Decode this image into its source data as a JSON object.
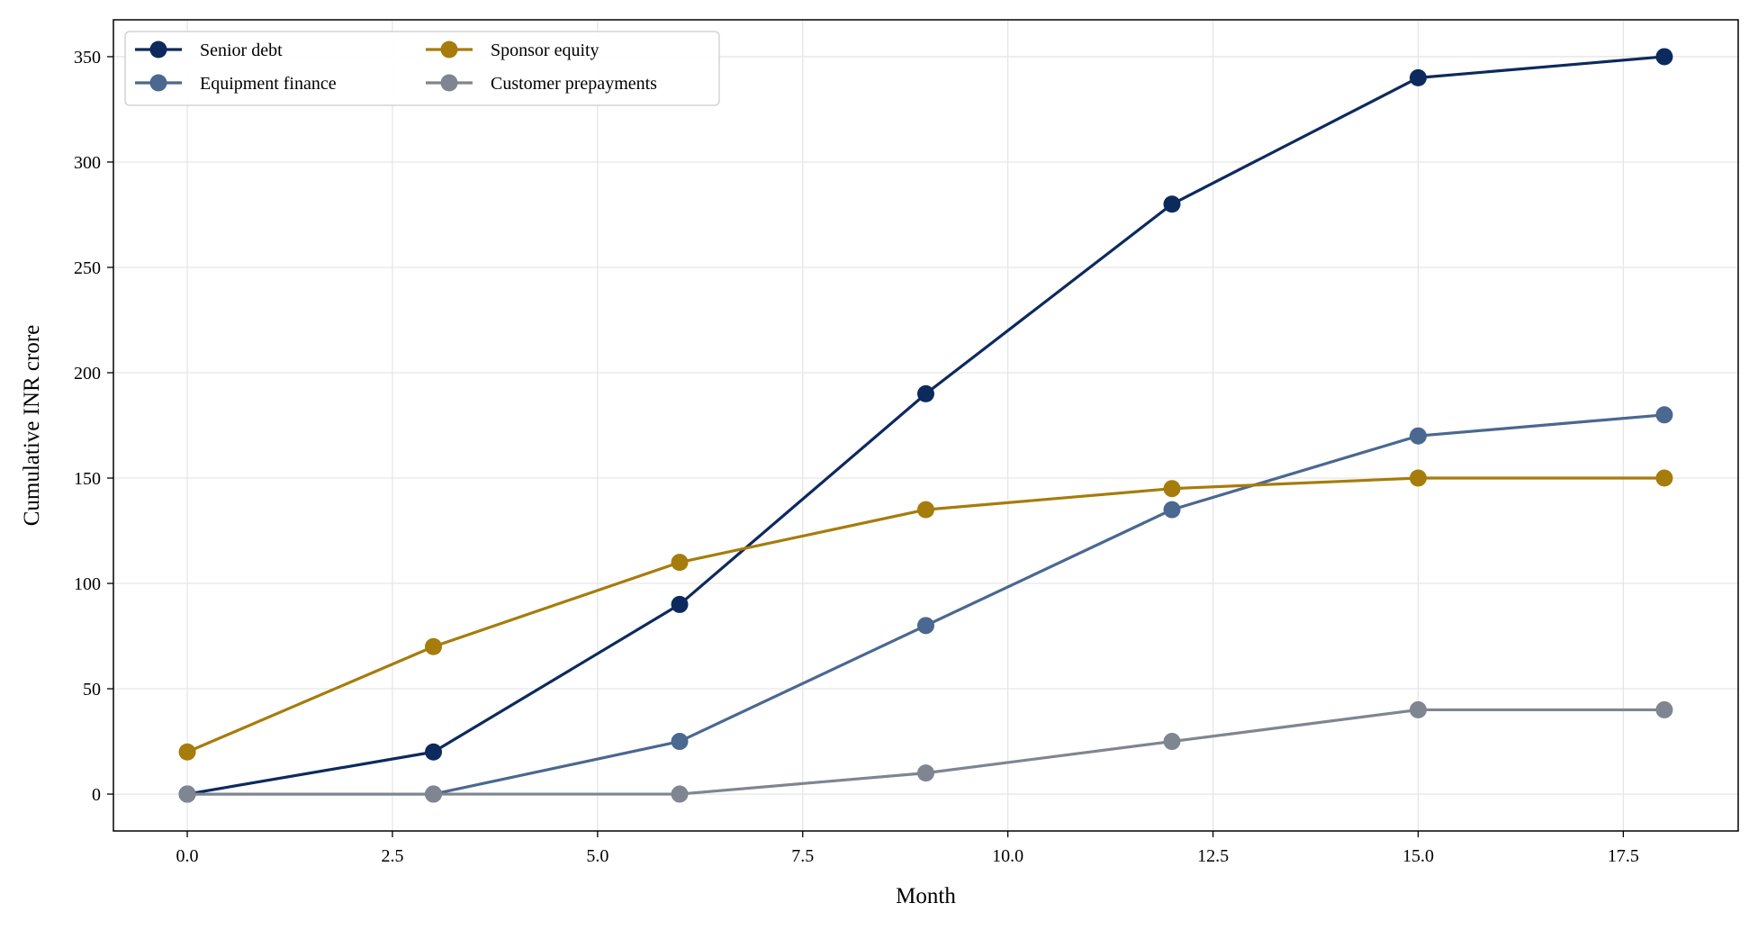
{
  "chart_data": {
    "type": "line",
    "title": "",
    "xlabel": "Month",
    "ylabel": "Cumulative INR crore",
    "xlim": [
      -0.9,
      18.9
    ],
    "ylim": [
      -17.5,
      367.5
    ],
    "xticks": [
      0.0,
      2.5,
      5.0,
      7.5,
      10.0,
      12.5,
      15.0,
      17.5
    ],
    "xtick_labels": [
      "0.0",
      "2.5",
      "5.0",
      "7.5",
      "10.0",
      "12.5",
      "15.0",
      "17.5"
    ],
    "yticks": [
      0,
      50,
      100,
      150,
      200,
      250,
      300,
      350
    ],
    "ytick_labels": [
      "0",
      "50",
      "100",
      "150",
      "200",
      "250",
      "300",
      "350"
    ],
    "grid": true,
    "legend_position": "top-left",
    "x": [
      0,
      3,
      6,
      9,
      12,
      15,
      18
    ],
    "series": [
      {
        "name": "Senior debt",
        "color": "#0d2a5e",
        "values": [
          0,
          20,
          90,
          190,
          280,
          340,
          350
        ]
      },
      {
        "name": "Equipment finance",
        "color": "#4a6890",
        "values": [
          0,
          0,
          25,
          80,
          135,
          170,
          180
        ]
      },
      {
        "name": "Sponsor equity",
        "color": "#a67c0c",
        "values": [
          20,
          70,
          110,
          135,
          145,
          150,
          150
        ]
      },
      {
        "name": "Customer prepayments",
        "color": "#7f8591",
        "values": [
          0,
          0,
          0,
          10,
          25,
          40,
          40
        ]
      }
    ]
  }
}
